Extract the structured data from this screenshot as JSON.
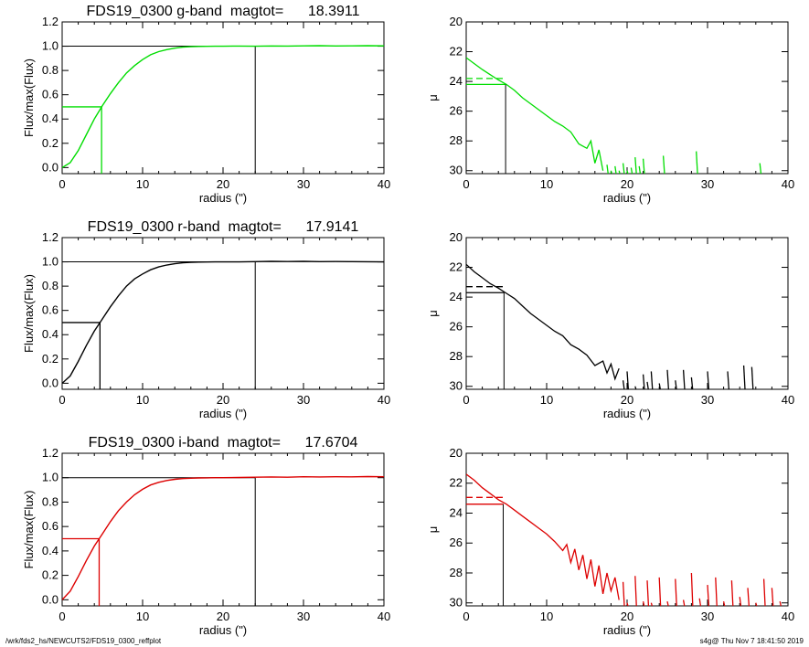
{
  "footer": {
    "path": "/wrk/fds2_hs/NEWCUTS2/FDS19_0300_reffplot",
    "stamp": "s4g@  Thu Nov  7 18:41:50 2019"
  },
  "chart_data": [
    {
      "type": "line",
      "panel": "growth-g",
      "title": "FDS19_0300 g-band  magtot=      18.3911",
      "xlabel": "radius (\")",
      "ylabel": "Flux/max(Flux)",
      "xlim": [
        0,
        40
      ],
      "ylim": [
        -0.05,
        1.2
      ],
      "xticks": [
        0,
        10,
        20,
        30,
        40
      ],
      "yticks": [
        "0.0",
        "0.2",
        "0.4",
        "0.6",
        "0.8",
        "1.0",
        "1.2"
      ],
      "color": "#00dd00",
      "curve": {
        "x": [
          0,
          1,
          2,
          3,
          4,
          5,
          6,
          7,
          8,
          9,
          10,
          11,
          12,
          13,
          14,
          15,
          16,
          17,
          18,
          19,
          20,
          22,
          24,
          26,
          28,
          30,
          32,
          34,
          36,
          38,
          40
        ],
        "y": [
          0.0,
          0.04,
          0.14,
          0.27,
          0.4,
          0.51,
          0.61,
          0.7,
          0.78,
          0.84,
          0.89,
          0.93,
          0.955,
          0.972,
          0.984,
          0.992,
          0.996,
          0.998,
          0.999,
          1.0,
          1.0,
          1.001,
          1.0,
          1.002,
          1.001,
          1.003,
          1.004,
          1.002,
          1.003,
          1.004,
          1.003
        ]
      },
      "half_light": {
        "x": 4.9,
        "y": 0.5
      },
      "total": {
        "x": 24.0,
        "y": 1.0
      }
    },
    {
      "type": "line",
      "panel": "profile-g",
      "xlabel": "radius (\")",
      "ylabel": "μ",
      "xlim": [
        0,
        40
      ],
      "ylim": [
        30.2,
        20
      ],
      "xticks": [
        0,
        10,
        20,
        30,
        40
      ],
      "yticks": [
        "20",
        "22",
        "24",
        "26",
        "28",
        "30"
      ],
      "color": "#00dd00",
      "profile": {
        "x": [
          0,
          1,
          2,
          3,
          4,
          5,
          6,
          7,
          8,
          9,
          10,
          11,
          12,
          13,
          14,
          15,
          15.5,
          16,
          16.5,
          17
        ],
        "y": [
          22.4,
          22.8,
          23.2,
          23.55,
          23.9,
          24.2,
          24.6,
          25.1,
          25.5,
          25.9,
          26.3,
          26.7,
          27.0,
          27.4,
          28.2,
          28.5,
          28.0,
          29.5,
          28.6,
          30.0
        ]
      },
      "noise": {
        "x": [
          17.5,
          18.0,
          18.5,
          19.0,
          19.5,
          20.0,
          20.5,
          21.0,
          21.5,
          22.0,
          24.5,
          28.6,
          36.5
        ],
        "y": [
          29.6,
          30.0,
          29.7,
          30.0,
          29.5,
          30.0,
          29.8,
          29.1,
          29.7,
          29.2,
          29.0,
          28.7,
          29.5
        ]
      },
      "mu_e": 24.2,
      "mu_mean": 23.8,
      "r_e": 4.9
    },
    {
      "type": "line",
      "panel": "growth-r",
      "title": "FDS19_0300 r-band  magtot=      17.9141",
      "xlabel": "radius (\")",
      "ylabel": "Flux/max(Flux)",
      "xlim": [
        0,
        40
      ],
      "ylim": [
        -0.05,
        1.2
      ],
      "xticks": [
        0,
        10,
        20,
        30,
        40
      ],
      "yticks": [
        "0.0",
        "0.2",
        "0.4",
        "0.6",
        "0.8",
        "1.0",
        "1.2"
      ],
      "color": "#000000",
      "curve": {
        "x": [
          0,
          1,
          2,
          3,
          4,
          5,
          6,
          7,
          8,
          9,
          10,
          11,
          12,
          13,
          14,
          15,
          16,
          17,
          18,
          19,
          20,
          22,
          24,
          26,
          28,
          30,
          32,
          34,
          36,
          38,
          40
        ],
        "y": [
          0.0,
          0.06,
          0.18,
          0.31,
          0.43,
          0.53,
          0.63,
          0.72,
          0.8,
          0.86,
          0.9,
          0.935,
          0.958,
          0.974,
          0.985,
          0.992,
          0.996,
          0.998,
          0.999,
          1.0,
          1.0,
          1.0,
          1.002,
          1.004,
          1.003,
          1.004,
          1.002,
          1.003,
          1.002,
          1.001,
          1.0
        ]
      },
      "half_light": {
        "x": 4.7,
        "y": 0.5
      },
      "total": {
        "x": 24.0,
        "y": 1.0
      }
    },
    {
      "type": "line",
      "panel": "profile-r",
      "xlabel": "radius (\")",
      "ylabel": "μ",
      "xlim": [
        0,
        40
      ],
      "ylim": [
        30.2,
        20
      ],
      "xticks": [
        0,
        10,
        20,
        30,
        40
      ],
      "yticks": [
        "20",
        "22",
        "24",
        "26",
        "28",
        "30"
      ],
      "color": "#000000",
      "profile": {
        "x": [
          0,
          1,
          2,
          3,
          4,
          5,
          6,
          7,
          8,
          9,
          10,
          11,
          12,
          13,
          14,
          15,
          16,
          17,
          17.5,
          18,
          18.5,
          19
        ],
        "y": [
          21.8,
          22.3,
          22.7,
          23.1,
          23.4,
          23.75,
          24.1,
          24.6,
          25.1,
          25.5,
          25.9,
          26.3,
          26.6,
          27.2,
          27.5,
          27.9,
          28.6,
          28.3,
          29.1,
          28.5,
          29.5,
          28.8
        ]
      },
      "noise": {
        "x": [
          19.5,
          20.0,
          21.0,
          22.0,
          22.5,
          23.0,
          24.0,
          25.0,
          26.0,
          27.0,
          28.0,
          30.0,
          32.5,
          34.5,
          35.5
        ],
        "y": [
          29.6,
          29.0,
          30.0,
          29.2,
          29.7,
          29.0,
          29.8,
          28.9,
          29.6,
          28.9,
          29.4,
          29.0,
          29.0,
          28.6,
          28.7
        ]
      },
      "mu_e": 23.7,
      "mu_mean": 23.3,
      "r_e": 4.7
    },
    {
      "type": "line",
      "panel": "growth-i",
      "title": "FDS19_0300 i-band  magtot=      17.6704",
      "xlabel": "radius (\")",
      "ylabel": "Flux/max(Flux)",
      "xlim": [
        0,
        40
      ],
      "ylim": [
        -0.05,
        1.2
      ],
      "xticks": [
        0,
        10,
        20,
        30,
        40
      ],
      "yticks": [
        "0.0",
        "0.2",
        "0.4",
        "0.6",
        "0.8",
        "1.0",
        "1.2"
      ],
      "color": "#dd0000",
      "curve": {
        "x": [
          0,
          1,
          2,
          3,
          4,
          5,
          6,
          7,
          8,
          9,
          10,
          11,
          12,
          13,
          14,
          15,
          16,
          17,
          18,
          19,
          20,
          22,
          24,
          26,
          28,
          30,
          32,
          34,
          36,
          38,
          40
        ],
        "y": [
          0.0,
          0.07,
          0.19,
          0.32,
          0.44,
          0.54,
          0.64,
          0.73,
          0.8,
          0.86,
          0.905,
          0.94,
          0.962,
          0.977,
          0.987,
          0.993,
          0.996,
          0.998,
          0.999,
          1.0,
          1.0,
          1.002,
          1.004,
          1.006,
          1.004,
          1.008,
          1.006,
          1.008,
          1.007,
          1.009,
          1.008
        ]
      },
      "half_light": {
        "x": 4.6,
        "y": 0.5
      },
      "total": {
        "x": 24.0,
        "y": 1.0
      }
    },
    {
      "type": "line",
      "panel": "profile-i",
      "xlabel": "radius (\")",
      "ylabel": "μ",
      "xlim": [
        0,
        40
      ],
      "ylim": [
        30.2,
        20
      ],
      "xticks": [
        0,
        10,
        20,
        30,
        40
      ],
      "yticks": [
        "20",
        "22",
        "24",
        "26",
        "28",
        "30"
      ],
      "color": "#dd0000",
      "profile": {
        "x": [
          0,
          1,
          2,
          3,
          4,
          5,
          6,
          7,
          8,
          9,
          10,
          11,
          12,
          12.5,
          13,
          13.5,
          14,
          14.5,
          15,
          15.5,
          16,
          16.5,
          17,
          17.5,
          18,
          18.5,
          19
        ],
        "y": [
          21.4,
          21.8,
          22.3,
          22.7,
          23.1,
          23.4,
          23.8,
          24.2,
          24.6,
          25.0,
          25.4,
          25.9,
          26.5,
          26.1,
          27.3,
          26.4,
          27.8,
          26.8,
          28.4,
          27.1,
          28.9,
          27.5,
          29.4,
          28.0,
          29.2,
          28.3,
          29.8
        ]
      },
      "noise": {
        "x": [
          19.5,
          20.0,
          21.0,
          22.0,
          22.5,
          23.0,
          24.0,
          25.0,
          26.0,
          27.0,
          28.0,
          29.0,
          30.0,
          31.0,
          32.0,
          33.0,
          34.0,
          35.0,
          36.0,
          37.0,
          38.0,
          39.0
        ],
        "y": [
          28.6,
          30.0,
          28.2,
          29.9,
          28.5,
          30.0,
          28.3,
          29.9,
          28.4,
          29.8,
          28.0,
          29.7,
          28.8,
          28.3,
          29.9,
          28.5,
          29.6,
          29.0,
          30.0,
          28.4,
          29.0,
          29.9
        ]
      },
      "mu_e": 23.4,
      "mu_mean": 22.95,
      "r_e": 4.6
    }
  ]
}
